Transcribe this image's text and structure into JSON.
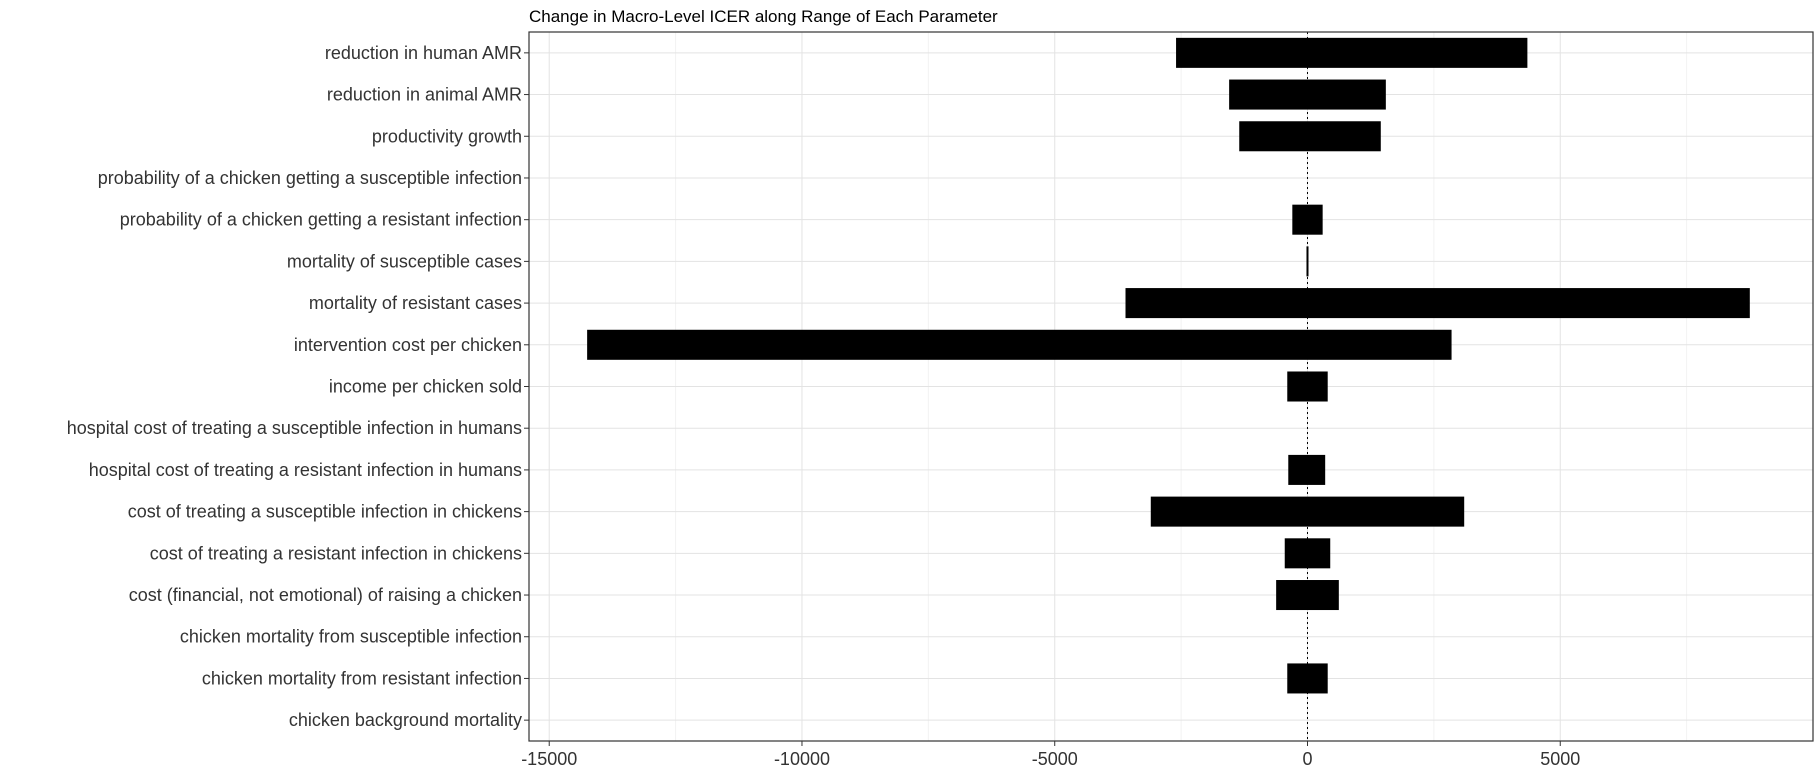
{
  "chart_data": {
    "type": "bar",
    "orientation": "horizontal",
    "title": "Change in Macro-Level ICER along Range of Each Parameter",
    "xlabel": "",
    "ylabel": "",
    "xlim": [
      -15400,
      10000
    ],
    "xticks": [
      -15000,
      -10000,
      -5000,
      0,
      5000
    ],
    "xtick_labels": [
      "-15000",
      "-10000",
      "-5000",
      "0",
      "5000"
    ],
    "reference_line": 0,
    "grid": true,
    "bar_color": "#000000",
    "categories": [
      "reduction in human AMR",
      "reduction in animal AMR",
      "productivity growth",
      "probability of a chicken getting a susceptible infection",
      "probability of a chicken getting a resistant infection",
      "mortality of susceptible cases",
      "mortality of resistant cases",
      "intervention cost per chicken",
      "income per chicken sold",
      "hospital cost of treating a susceptible infection in humans",
      "hospital cost of treating a resistant infection in humans",
      "cost of treating a susceptible infection in chickens",
      "cost of treating a resistant infection in chickens",
      "cost (financial, not emotional) of raising a chicken",
      "chicken mortality from susceptible infection",
      "chicken mortality from resistant infection",
      "chicken background mortality"
    ],
    "ranges": [
      [
        -2600,
        4350
      ],
      [
        -1550,
        1550
      ],
      [
        -1350,
        1450
      ],
      [
        0,
        0
      ],
      [
        -300,
        300
      ],
      [
        -20,
        20
      ],
      [
        -3600,
        8750
      ],
      [
        -14250,
        2850
      ],
      [
        -400,
        400
      ],
      [
        0,
        0
      ],
      [
        -380,
        350
      ],
      [
        -3100,
        3100
      ],
      [
        -450,
        450
      ],
      [
        -620,
        620
      ],
      [
        0,
        0
      ],
      [
        -400,
        400
      ],
      [
        0,
        0
      ]
    ]
  }
}
